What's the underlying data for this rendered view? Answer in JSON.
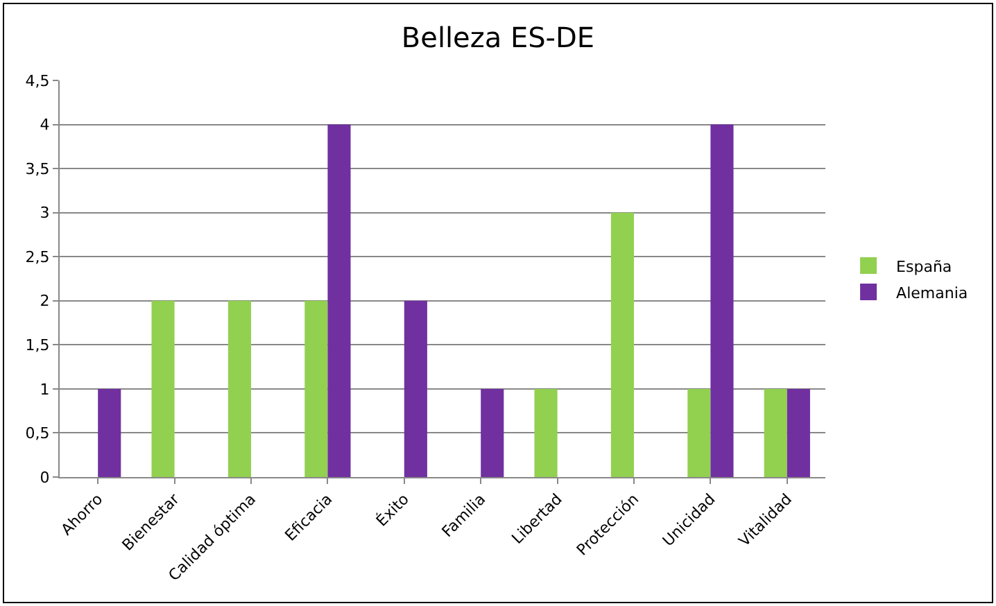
{
  "chart_data": {
    "type": "bar",
    "title": "Belleza ES-DE",
    "categories": [
      "Ahorro",
      "Bienestar",
      "Calidad óptima",
      "Eficacia",
      "Éxito",
      "Familia",
      "Libertad",
      "Protección",
      "Unicidad",
      "Vitalidad"
    ],
    "series": [
      {
        "name": "España",
        "color": "#92d050",
        "values": [
          null,
          2,
          2,
          2,
          null,
          null,
          1,
          3,
          1,
          1
        ]
      },
      {
        "name": "Alemania",
        "color": "#7030a0",
        "values": [
          1,
          null,
          null,
          4,
          2,
          1,
          null,
          null,
          4,
          1
        ]
      }
    ],
    "ylim": [
      0,
      4.5
    ],
    "yticks": [
      0,
      {
        "value": 0.5,
        "label": "0,5"
      },
      1,
      {
        "value": 1.5,
        "label": "1,5"
      },
      2,
      {
        "value": 2.5,
        "label": "2,5"
      },
      3,
      {
        "value": 3.5,
        "label": "3,5"
      },
      4,
      {
        "value": 4.5,
        "label": "4,5"
      }
    ],
    "grid": "y",
    "legend": "right"
  }
}
